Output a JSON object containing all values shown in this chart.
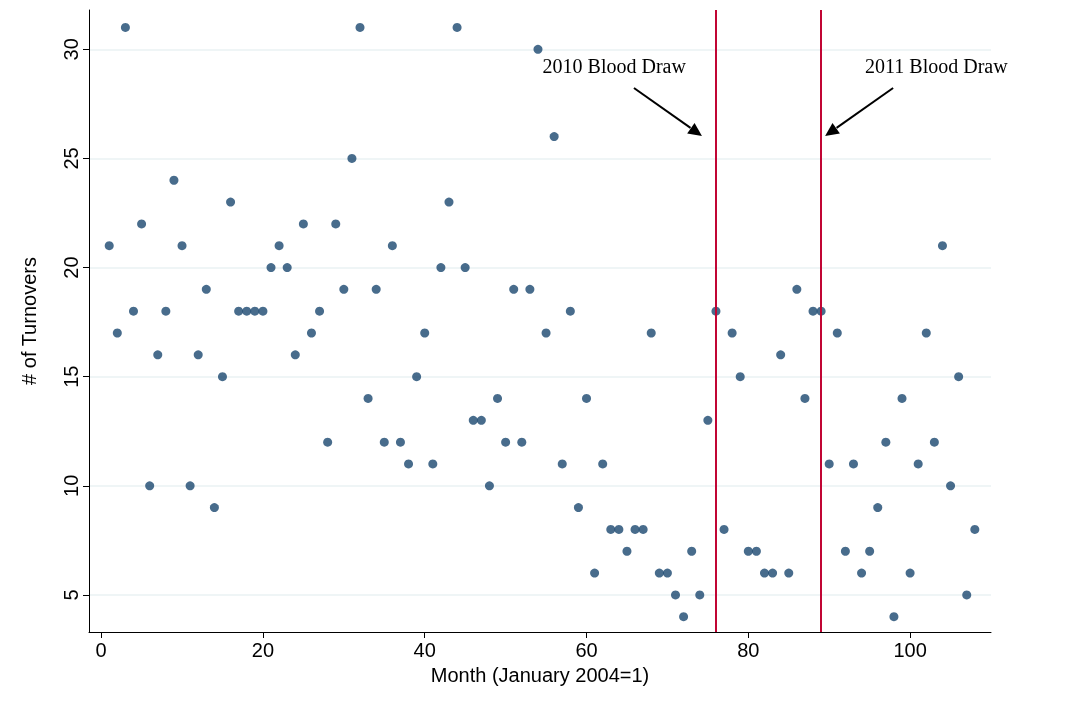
{
  "chart_data": {
    "type": "scatter",
    "xlabel": "Month (January 2004=1)",
    "ylabel": "# of Turnovers",
    "x": [
      1,
      2,
      3,
      4,
      5,
      6,
      7,
      8,
      9,
      10,
      11,
      12,
      13,
      14,
      15,
      16,
      17,
      18,
      19,
      20,
      21,
      22,
      23,
      24,
      25,
      26,
      27,
      28,
      29,
      30,
      31,
      32,
      33,
      34,
      35,
      36,
      37,
      38,
      39,
      40,
      41,
      42,
      43,
      44,
      45,
      46,
      47,
      48,
      49,
      50,
      51,
      52,
      53,
      54,
      55,
      56,
      57,
      58,
      59,
      60,
      61,
      62,
      63,
      64,
      65,
      66,
      67,
      68,
      69,
      70,
      71,
      72,
      73,
      74,
      75,
      76,
      77,
      78,
      79,
      80,
      81,
      82,
      83,
      84,
      85,
      86,
      87,
      88,
      89,
      90,
      91,
      92,
      93,
      94,
      95,
      96,
      97,
      98,
      99,
      100,
      101,
      102,
      103,
      104,
      105,
      106,
      107,
      108
    ],
    "series": [
      {
        "color": "#1a476f",
        "values": [
          21,
          17,
          31,
          18,
          22,
          10,
          16,
          18,
          24,
          21,
          10,
          16,
          19,
          9,
          15,
          23,
          18,
          18,
          18,
          18,
          20,
          21,
          20,
          16,
          22,
          17,
          18,
          12,
          22,
          19,
          25,
          31,
          14,
          19,
          12,
          21,
          12,
          11,
          15,
          17,
          11,
          20,
          23,
          31,
          20,
          13,
          13,
          10,
          14,
          12,
          19,
          12,
          19,
          30,
          17,
          26,
          11,
          18,
          9,
          14,
          6,
          11,
          8,
          8,
          7,
          8,
          8,
          17,
          6,
          6,
          5,
          4,
          7,
          5,
          13,
          18,
          8,
          17,
          15,
          7,
          7,
          6,
          6,
          16,
          6,
          19,
          14,
          18,
          18,
          11,
          17,
          7,
          11,
          6,
          7,
          9,
          12,
          4,
          14,
          6,
          11,
          17,
          12,
          21,
          10,
          15,
          5,
          8
        ]
      }
    ],
    "xlim": [
      -1.5,
      110
    ],
    "xticks": [
      0,
      20,
      40,
      60,
      80,
      100
    ],
    "ylim": [
      3.3,
      31.8
    ],
    "yticks": [
      5,
      10,
      15,
      20,
      25,
      30
    ],
    "grid": "y",
    "marker": "circle",
    "ref_lines": [
      {
        "axis": "x",
        "value": 76,
        "label": "2010 Blood Draw",
        "color": "#c10534"
      },
      {
        "axis": "x",
        "value": 89,
        "label": "2011 Blood Draw",
        "color": "#c10534"
      }
    ]
  }
}
